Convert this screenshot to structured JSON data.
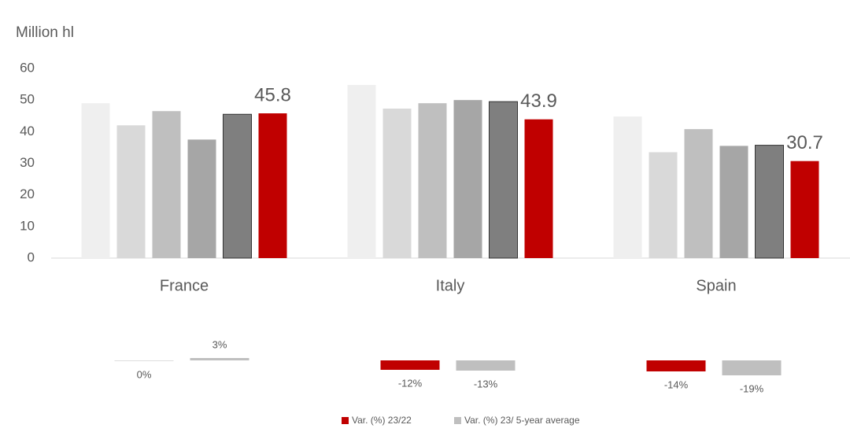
{
  "chart_data": [
    {
      "type": "bar",
      "y_label": "Million hl",
      "categories": [
        "France",
        "Italy",
        "Spain"
      ],
      "ylim": [
        0,
        60
      ],
      "yticks": [
        0,
        10,
        20,
        30,
        40,
        50,
        60
      ],
      "series": [
        {
          "color": "#efefef",
          "values": [
            49,
            54.8,
            44.8
          ]
        },
        {
          "color": "#d9d9d9",
          "values": [
            42,
            47.3,
            33.5
          ]
        },
        {
          "color": "#bfbfbf",
          "values": [
            46.5,
            49,
            40.8
          ]
        },
        {
          "color": "#a6a6a6",
          "values": [
            37.5,
            50,
            35.5
          ]
        },
        {
          "color": "#7f7f7f",
          "values": [
            45.5,
            49.5,
            35.7
          ]
        },
        {
          "color": "#c00000",
          "values": [
            45.8,
            43.9,
            30.7
          ],
          "data_labels": true
        }
      ]
    },
    {
      "type": "bar",
      "ylim": [
        -20,
        5
      ],
      "legend": "bottom",
      "series": [
        {
          "name": "Var. (%) 23/22",
          "color": "#c00000",
          "values": [
            0,
            -12,
            -14
          ],
          "value_labels": [
            "0%",
            "-12%",
            "-14%"
          ]
        },
        {
          "name": "Var. (%) 23/ 5-year average",
          "color": "#bfbfbf",
          "values": [
            3,
            -13,
            -19
          ],
          "value_labels": [
            "3%",
            "-13%",
            "-19%"
          ]
        }
      ]
    }
  ]
}
